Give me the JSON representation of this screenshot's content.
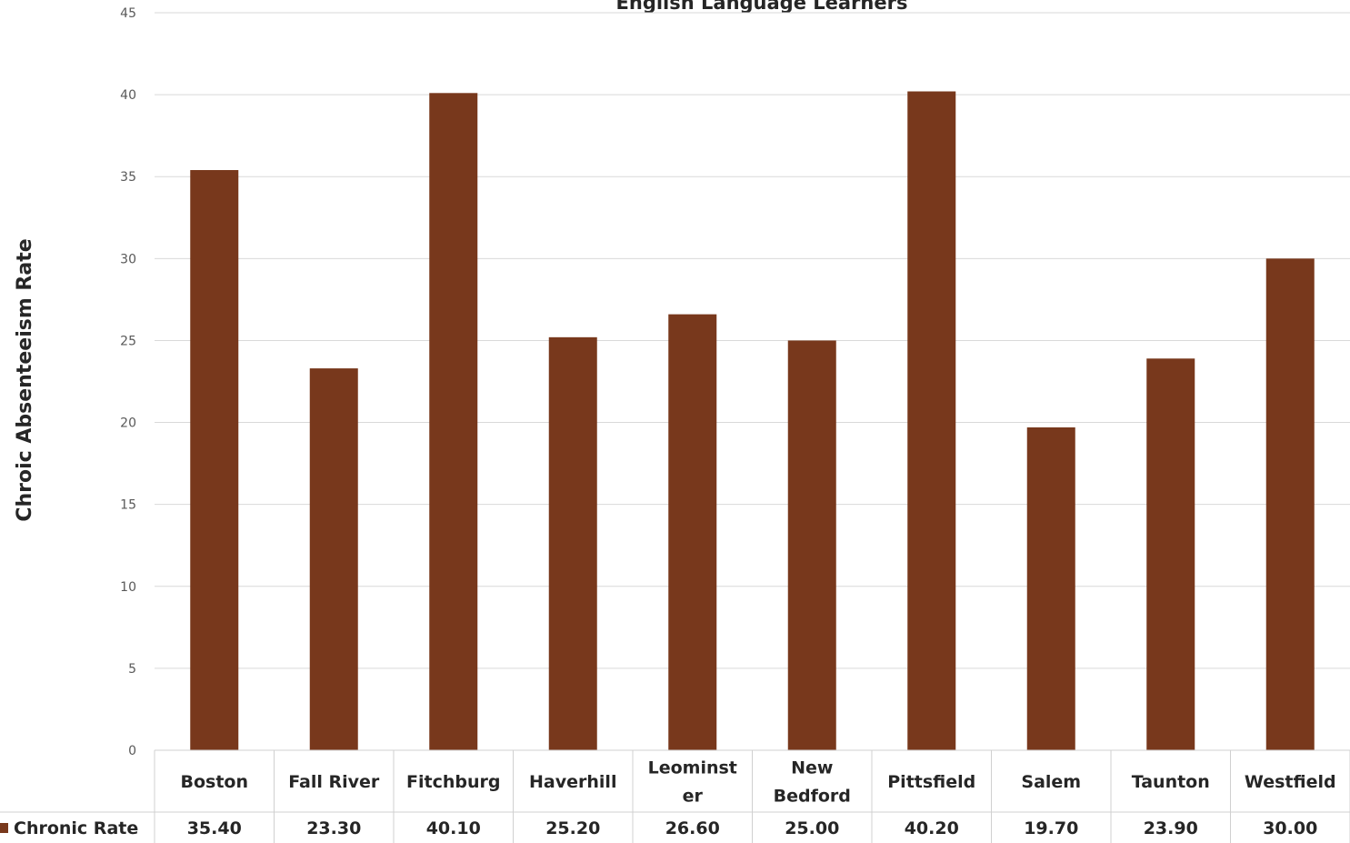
{
  "chart_data": {
    "type": "bar",
    "title": "English Language Learners",
    "ylabel": "Chroic Absenteeism Rate",
    "xlabel": "",
    "ylim": [
      0,
      45
    ],
    "ytick_step": 5,
    "grid": true,
    "color": "#78381C",
    "categories": [
      [
        "Boston"
      ],
      [
        "Fall River"
      ],
      [
        "Fitchburg"
      ],
      [
        "Haverhill"
      ],
      [
        "Leominst",
        "er"
      ],
      [
        "New",
        "Bedford"
      ],
      [
        "Pittsfield"
      ],
      [
        "Salem"
      ],
      [
        "Taunton"
      ],
      [
        "Westfield"
      ]
    ],
    "series": [
      {
        "name": "Chronic Rate",
        "values": [
          35.4,
          23.3,
          40.1,
          25.2,
          26.6,
          25.0,
          40.2,
          19.7,
          23.9,
          30.0
        ],
        "labels": [
          "35.40",
          "23.30",
          "40.10",
          "25.20",
          "26.60",
          "25.00",
          "40.20",
          "19.70",
          "23.90",
          "30.00"
        ]
      }
    ],
    "data_table": true
  }
}
